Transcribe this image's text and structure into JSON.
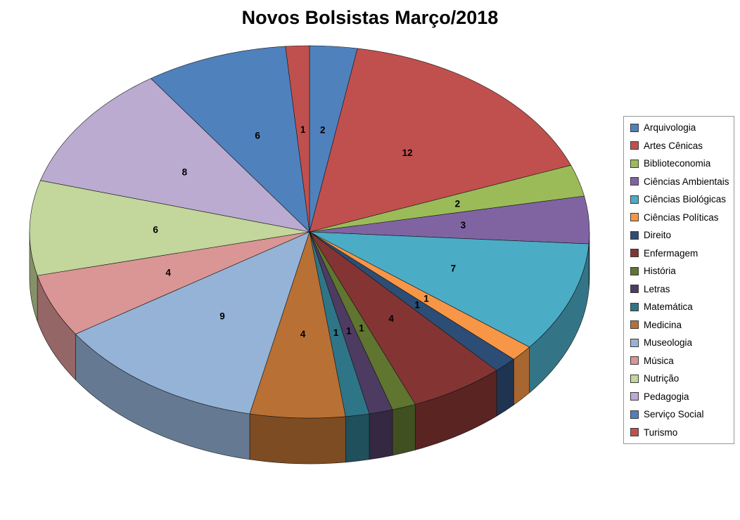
{
  "chart_data": {
    "type": "pie",
    "style": "3d-pie",
    "title": "Novos Bolsistas Março/2018",
    "total": 73,
    "data_labels": "values",
    "legend_position": "right",
    "start_angle_deg": 0,
    "direction": "clockwise",
    "categories": [
      "Arquivologia",
      "Artes Cênicas",
      "Biblioteconomia",
      "Ciências Ambientais",
      "Ciências Biológicas",
      "Ciências Políticas",
      "Direito",
      "Enfermagem",
      "História",
      "Letras",
      "Matemática",
      "Medicina",
      "Museologia",
      "Música",
      "Nutrição",
      "Pedagogia",
      "Serviço Social",
      "Turismo"
    ],
    "values": [
      2,
      12,
      2,
      3,
      7,
      1,
      1,
      4,
      1,
      1,
      1,
      4,
      9,
      4,
      6,
      8,
      6,
      1
    ],
    "colors": [
      "#4F81BD",
      "#C0504D",
      "#9BBB59",
      "#8064A2",
      "#4BACC6",
      "#F79646",
      "#2C4D75",
      "#843533",
      "#5F7530",
      "#4D3B62",
      "#2E7588",
      "#B97034",
      "#95B3D7",
      "#D99694",
      "#C3D69B",
      "#BBABD0",
      "#4F81BD",
      "#C0504D"
    ]
  }
}
